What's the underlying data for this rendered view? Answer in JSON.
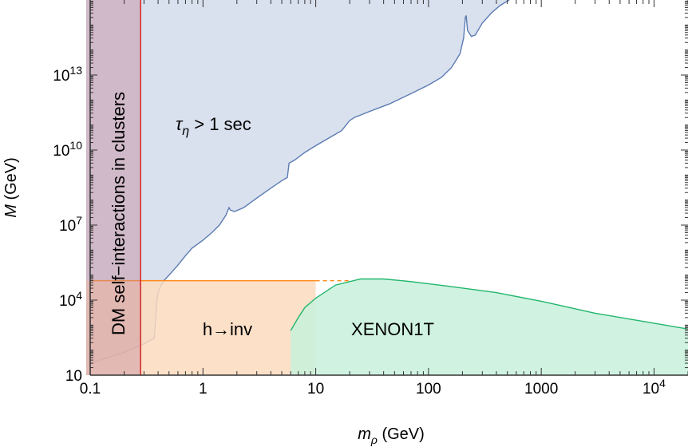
{
  "chart_data": {
    "type": "area",
    "x_scale": "log",
    "y_scale": "log",
    "xlim": [
      0.1,
      20000
    ],
    "ylim": [
      10,
      1e+16
    ],
    "xlabel": "m",
    "xlabel_sub": "ρ",
    "xlabel_unit": " (GeV)",
    "ylabel": "M",
    "ylabel_unit": " (GeV)",
    "x_ticks": [
      {
        "value": 0.1,
        "label": "0.1"
      },
      {
        "value": 1,
        "label": "1"
      },
      {
        "value": 10,
        "label": "10"
      },
      {
        "value": 100,
        "label": "100"
      },
      {
        "value": 1000,
        "label": "1000"
      },
      {
        "value": 10000,
        "base": "10",
        "exp": "4"
      }
    ],
    "y_ticks": [
      {
        "value": 10,
        "label": "10"
      },
      {
        "value": 10000,
        "base": "10",
        "exp": "4"
      },
      {
        "value": 10000000.0,
        "base": "10",
        "exp": "7"
      },
      {
        "value": 10000000000.0,
        "base": "10",
        "exp": "10"
      },
      {
        "value": 10000000000000.0,
        "base": "10",
        "exp": "13"
      }
    ],
    "regions": [
      {
        "name": "tau",
        "label_main": "τ",
        "label_sub": "η",
        "label_rest": " > 1 sec",
        "fill": "#d9e0ee",
        "stroke": "#5b7bb2",
        "boundary": [
          [
            0.1,
            30
          ],
          [
            0.2,
            80
          ],
          [
            0.3,
            180
          ],
          [
            0.37,
            300
          ],
          [
            0.38,
            1500
          ],
          [
            0.39,
            8000
          ],
          [
            0.4,
            20000
          ],
          [
            0.42,
            35000
          ],
          [
            0.45,
            60000
          ],
          [
            0.5,
            100000
          ],
          [
            0.6,
            250000
          ],
          [
            0.7,
            600000
          ],
          [
            0.8,
            1200000
          ],
          [
            1.0,
            2500000
          ],
          [
            1.2,
            5000000
          ],
          [
            1.4,
            10000000.0
          ],
          [
            1.6,
            25000000.0
          ],
          [
            1.7,
            50000000.0
          ],
          [
            1.75,
            40000000.0
          ],
          [
            1.9,
            35000000.0
          ],
          [
            2.3,
            50000000.0
          ],
          [
            3,
            120000000.0
          ],
          [
            4,
            300000000.0
          ],
          [
            5,
            600000000.0
          ],
          [
            5.6,
            800000000.0
          ],
          [
            5.8,
            3000000000.0
          ],
          [
            6.5,
            4000000000.0
          ],
          [
            8,
            8000000000.0
          ],
          [
            10,
            15000000000.0
          ],
          [
            13,
            30000000000.0
          ],
          [
            17,
            60000000000.0
          ],
          [
            20,
            150000000000.0
          ],
          [
            22,
            200000000000.0
          ],
          [
            30,
            350000000000.0
          ],
          [
            45,
            700000000000.0
          ],
          [
            70,
            1800000000000.0
          ],
          [
            100,
            4000000000000.0
          ],
          [
            130,
            8000000000000.0
          ],
          [
            160,
            20000000000000.0
          ],
          [
            190,
            70000000000000.0
          ],
          [
            205,
            300000000000000.0
          ],
          [
            212,
            2000000000000000.0
          ],
          [
            216,
            2400000000000000.0
          ],
          [
            222,
            600000000000000.0
          ],
          [
            240,
            350000000000000.0
          ],
          [
            260,
            400000000000000.0
          ],
          [
            300,
            1200000000000000.0
          ],
          [
            360,
            3000000000000000.0
          ],
          [
            430,
            6000000000000000.0
          ],
          [
            520,
            1e+16
          ]
        ]
      },
      {
        "name": "h-inv",
        "label": "h→inv",
        "fill": "#fbdbbe",
        "stroke": "#ff8a1a",
        "x_range": [
          0.1,
          10
        ],
        "y_max": 60000,
        "dashed_extension_to_x": 20
      },
      {
        "name": "xenon",
        "label": "XENON1T",
        "fill": "#c8f1dc",
        "stroke": "#20b56b",
        "boundary": [
          [
            6,
            600
          ],
          [
            7,
            2000
          ],
          [
            8,
            5000
          ],
          [
            10,
            12000
          ],
          [
            15,
            40000
          ],
          [
            25,
            70000
          ],
          [
            40,
            70000
          ],
          [
            70,
            55000
          ],
          [
            150,
            36000
          ],
          [
            400,
            20000
          ],
          [
            1000,
            9000
          ],
          [
            3000,
            3000
          ],
          [
            10000,
            1200
          ],
          [
            20000,
            700
          ]
        ]
      },
      {
        "name": "dm-self",
        "label": "DM self−interactions in clusters",
        "fill": "#c68a9a",
        "stroke": "#d63030",
        "x_max": 0.28
      }
    ]
  }
}
